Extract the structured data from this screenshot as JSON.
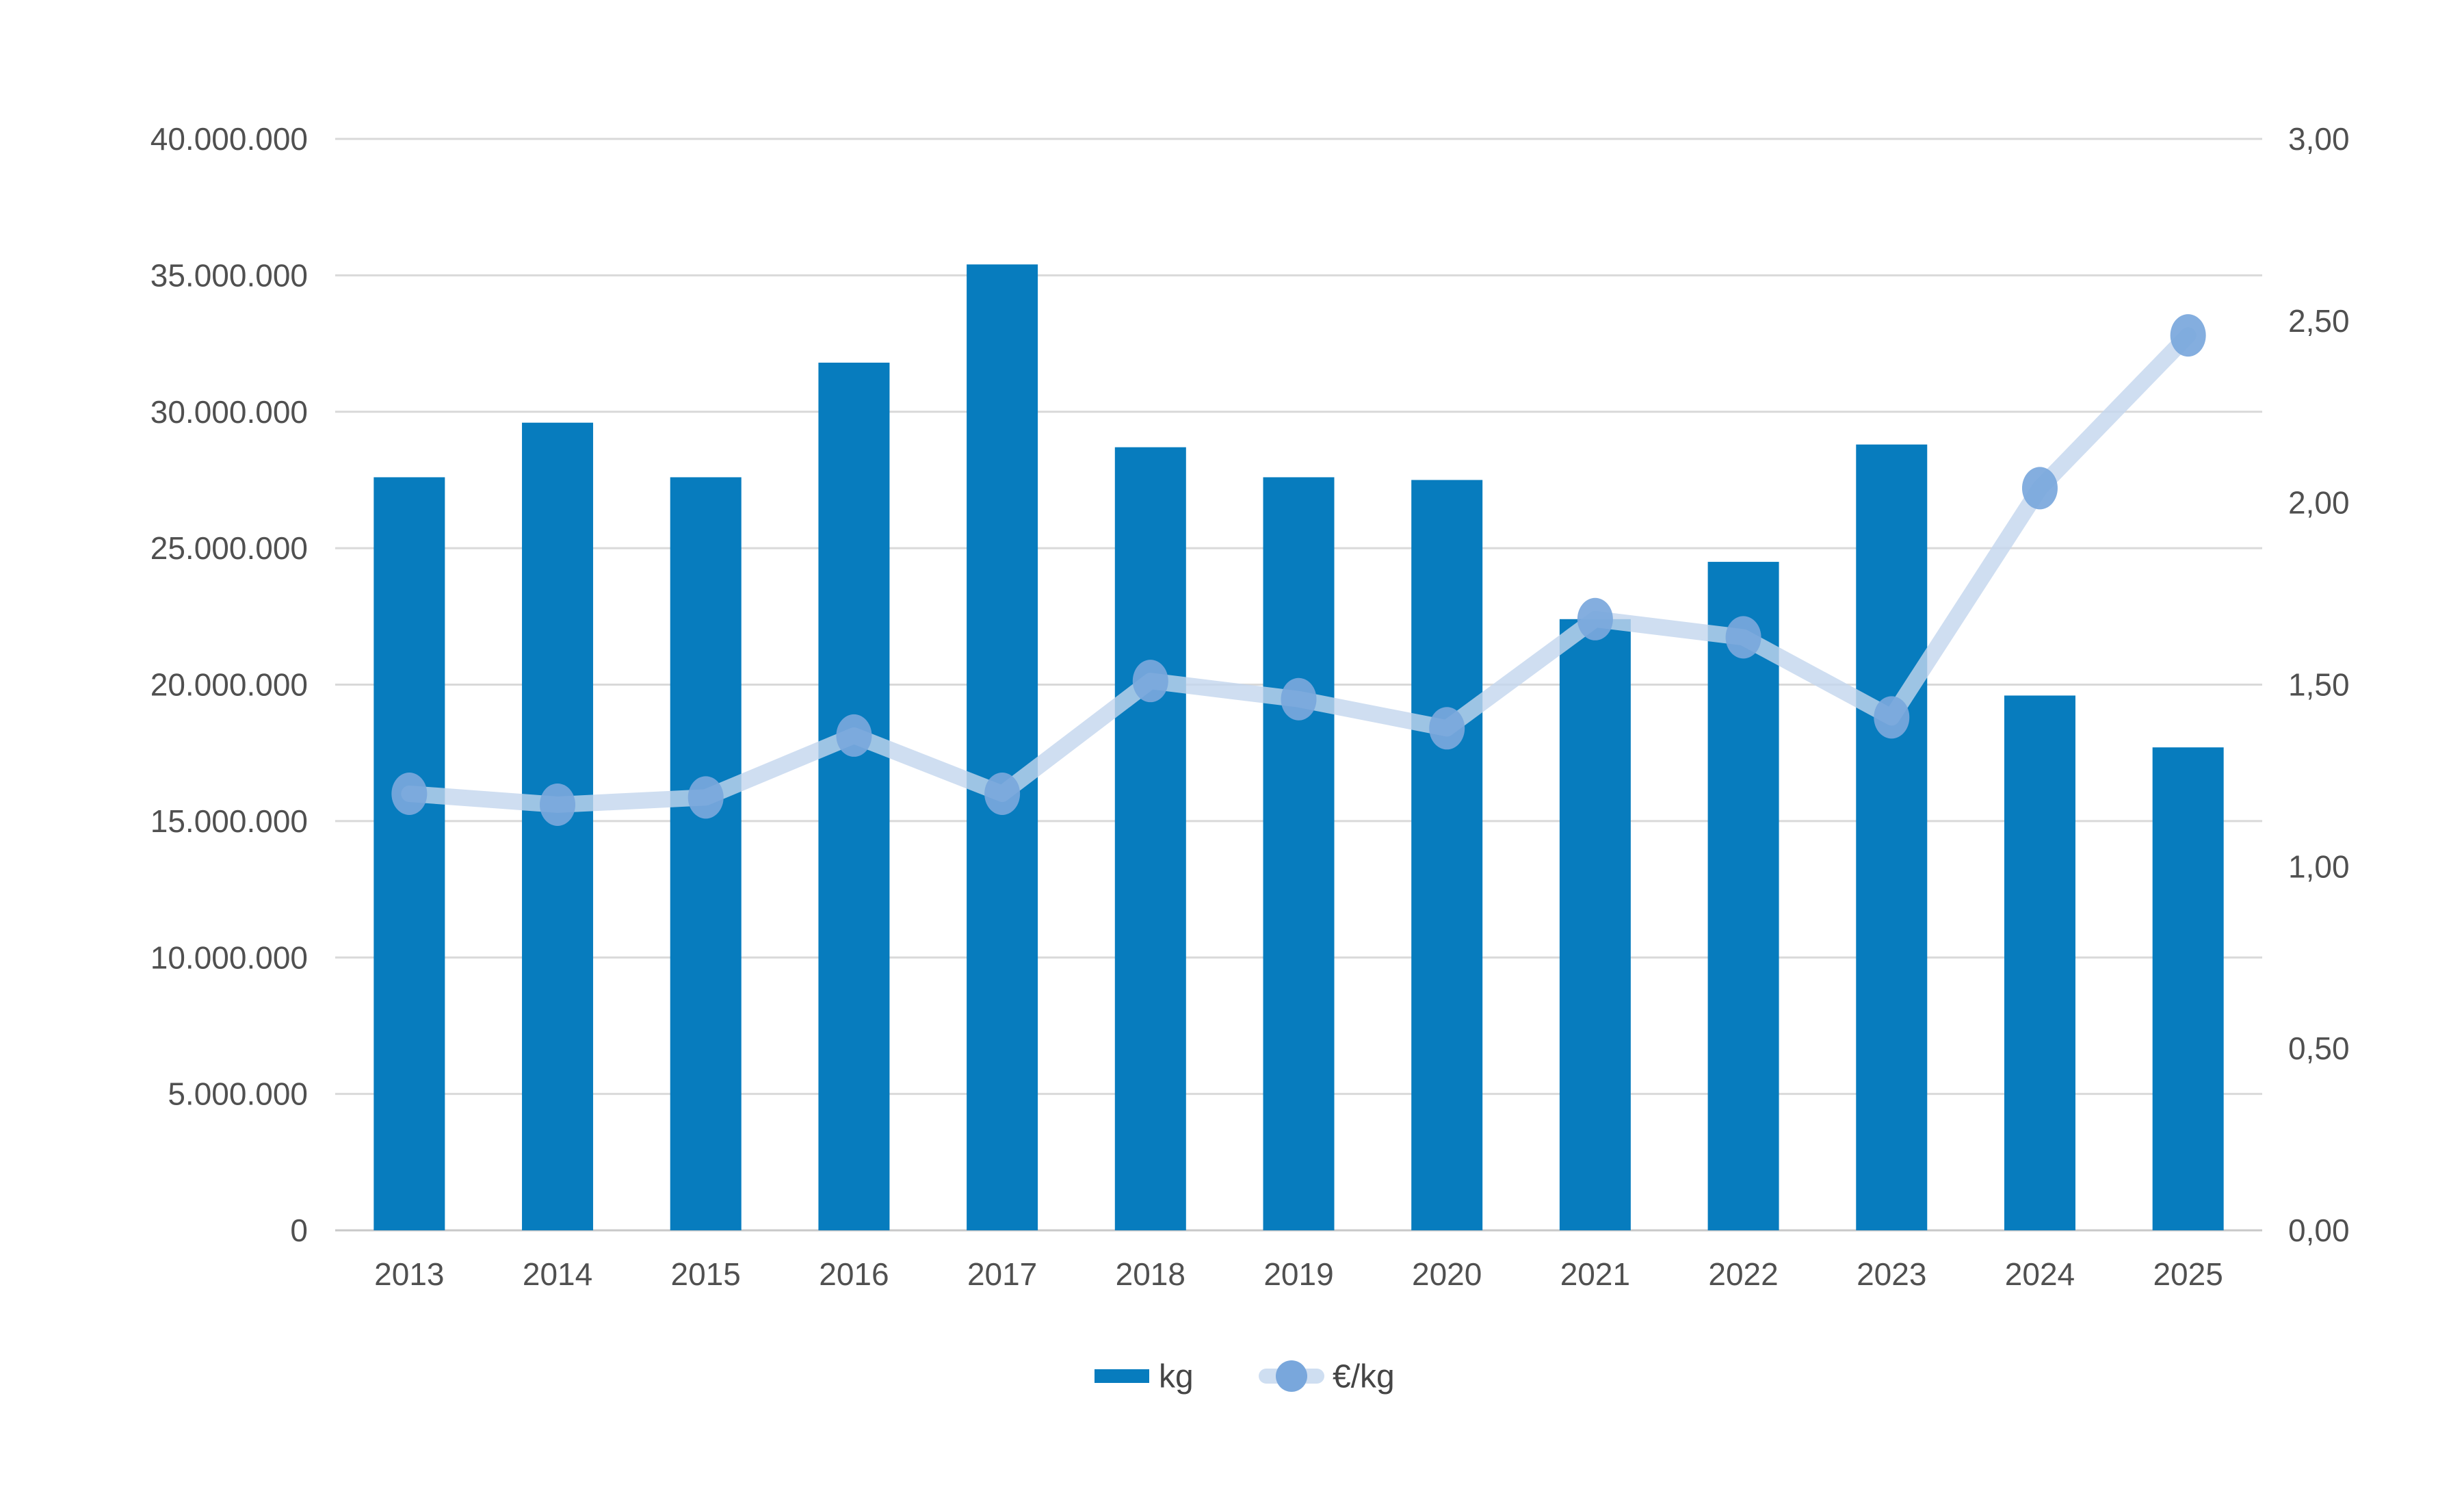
{
  "chart_data": {
    "type": "combo-bar-line",
    "title": "",
    "categories": [
      "2013",
      "2014",
      "2015",
      "2016",
      "2017",
      "2018",
      "2019",
      "2020",
      "2021",
      "2022",
      "2023",
      "2024",
      "2025"
    ],
    "series": [
      {
        "name": "kg",
        "type": "bar",
        "axis": "left",
        "color": "#077cbe",
        "values": [
          27600000,
          29600000,
          27600000,
          31800000,
          35400000,
          28700000,
          27600000,
          27500000,
          22400000,
          24500000,
          28800000,
          19600000,
          17700000
        ]
      },
      {
        "name": "€/kg",
        "type": "line",
        "axis": "right",
        "color": "#c3d6ee",
        "marker_color": "#79a7dc",
        "values": [
          1.2,
          1.17,
          1.19,
          1.36,
          1.2,
          1.51,
          1.46,
          1.38,
          1.68,
          1.63,
          1.41,
          2.04,
          2.46
        ]
      }
    ],
    "left_axis": {
      "min": 0,
      "max": 40000000,
      "step": 5000000,
      "tick_labels": [
        "40.000.000",
        "35.000.000",
        "30.000.000",
        "25.000.000",
        "20.000.000",
        "15.000.000",
        "10.000.000",
        "5.000.000",
        "0"
      ]
    },
    "right_axis": {
      "min": 0,
      "max": 3,
      "step": 0.5,
      "tick_labels": [
        "3,00",
        "2,50",
        "2,00",
        "1,50",
        "1,00",
        "0,50",
        "0,00"
      ]
    },
    "grid": true,
    "gridline_color": "#d9d9d9",
    "zero_line_color": "#c9c9c9",
    "background_color": "#ffffff",
    "text_color": "#505050",
    "legend_position": "bottom-center"
  }
}
